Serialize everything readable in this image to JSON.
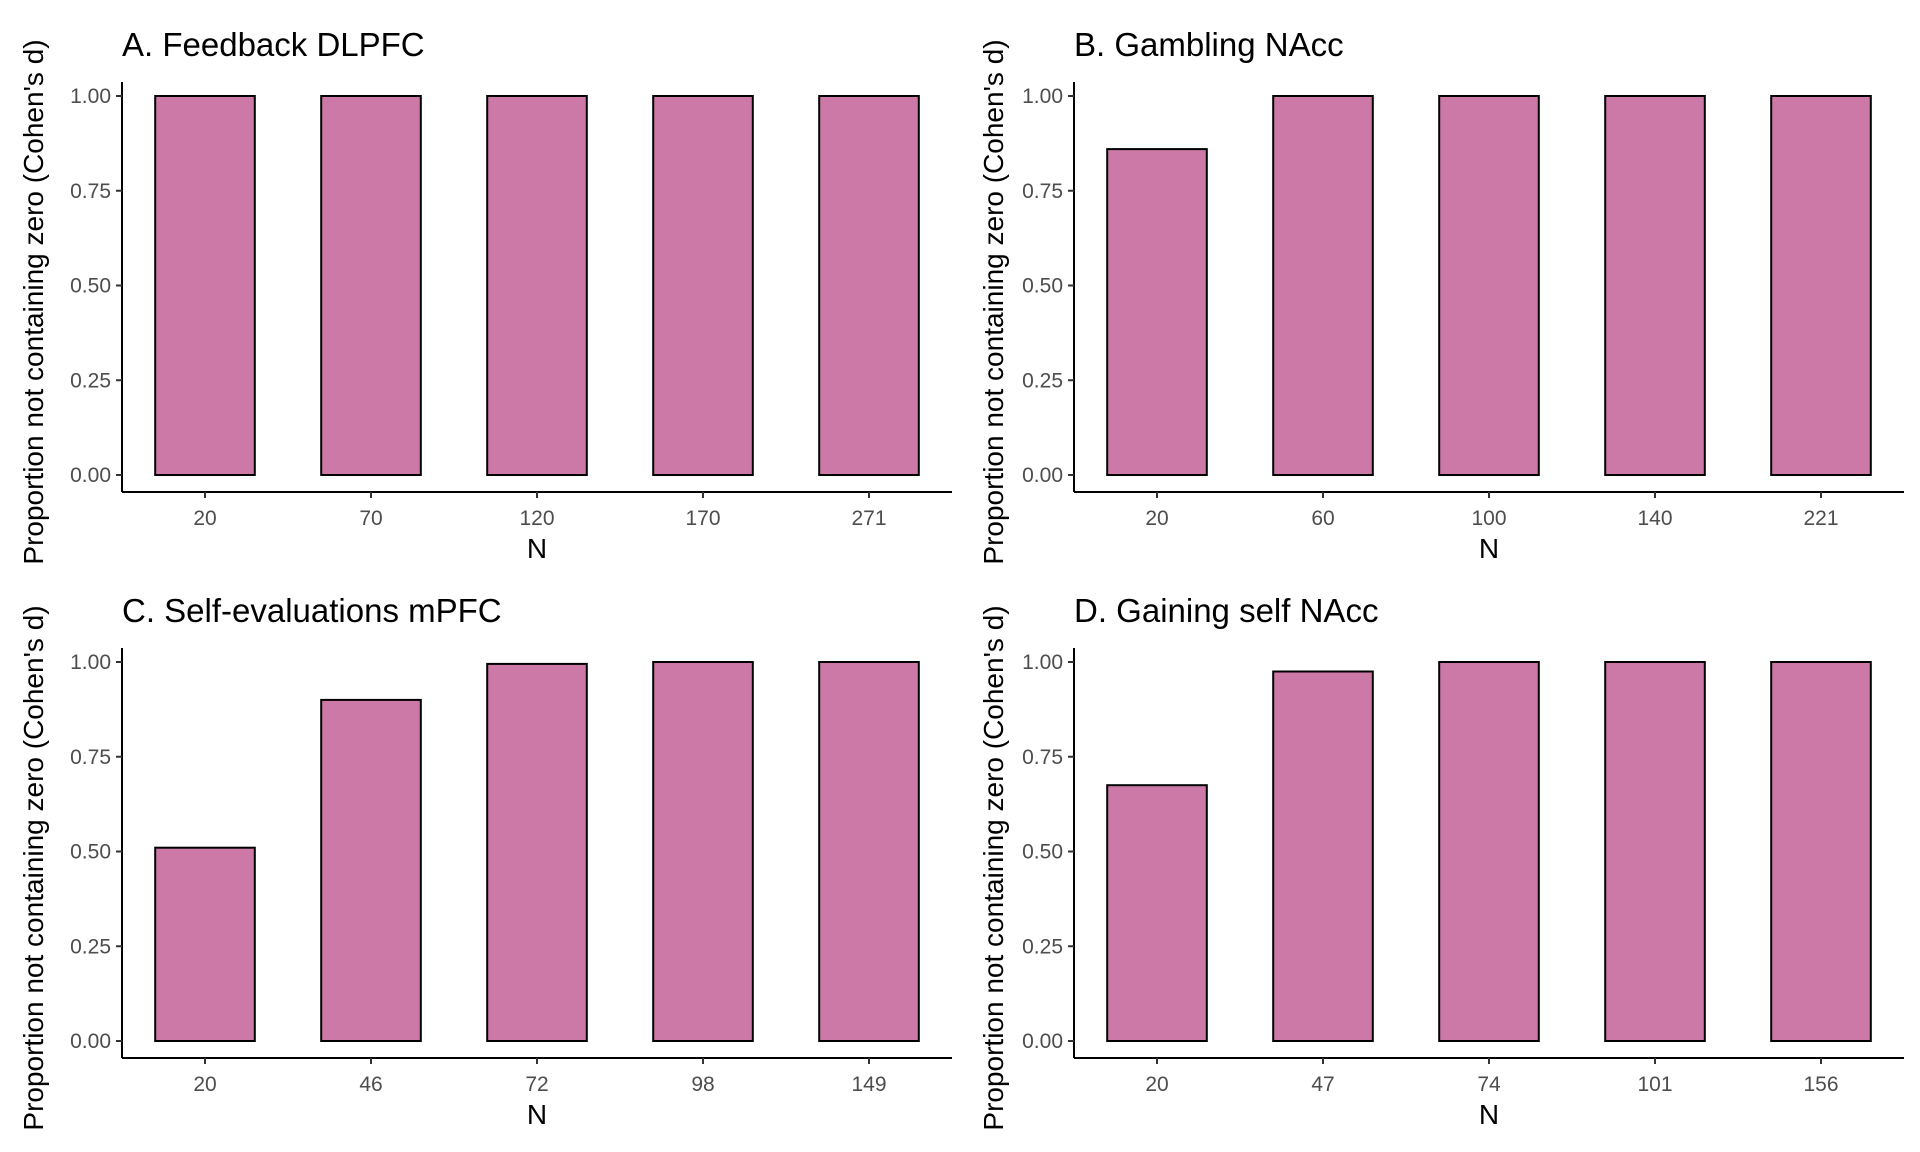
{
  "chart_data": [
    {
      "type": "bar",
      "title": "A. Feedback DLPFC",
      "xlabel": "N",
      "ylabel": "Proportion not containing zero (Cohen's d)",
      "categories": [
        "20",
        "70",
        "120",
        "170",
        "271"
      ],
      "values": [
        1.0,
        1.0,
        1.0,
        1.0,
        1.0
      ],
      "ylim": [
        0,
        1
      ],
      "yticks": [
        "0.00",
        "0.25",
        "0.50",
        "0.75",
        "1.00"
      ],
      "grid": false,
      "bar_color": "#CC79A7"
    },
    {
      "type": "bar",
      "title": "B. Gambling NAcc",
      "xlabel": "N",
      "ylabel": "Proportion not containing zero (Cohen's d)",
      "categories": [
        "20",
        "60",
        "100",
        "140",
        "221"
      ],
      "values": [
        0.86,
        1.0,
        1.0,
        1.0,
        1.0
      ],
      "ylim": [
        0,
        1
      ],
      "yticks": [
        "0.00",
        "0.25",
        "0.50",
        "0.75",
        "1.00"
      ],
      "grid": false,
      "bar_color": "#CC79A7"
    },
    {
      "type": "bar",
      "title": "C. Self-evaluations mPFC",
      "xlabel": "N",
      "ylabel": "Proportion not containing zero (Cohen's d)",
      "categories": [
        "20",
        "46",
        "72",
        "98",
        "149"
      ],
      "values": [
        0.51,
        0.9,
        0.995,
        1.0,
        1.0
      ],
      "ylim": [
        0,
        1
      ],
      "yticks": [
        "0.00",
        "0.25",
        "0.50",
        "0.75",
        "1.00"
      ],
      "grid": false,
      "bar_color": "#CC79A7"
    },
    {
      "type": "bar",
      "title": "D. Gaining self NAcc",
      "xlabel": "N",
      "ylabel": "Proportion not containing zero (Cohen's d)",
      "categories": [
        "20",
        "47",
        "74",
        "101",
        "156"
      ],
      "values": [
        0.675,
        0.975,
        1.0,
        1.0,
        1.0
      ],
      "ylim": [
        0,
        1
      ],
      "yticks": [
        "0.00",
        "0.25",
        "0.50",
        "0.75",
        "1.00"
      ],
      "grid": false,
      "bar_color": "#CC79A7"
    }
  ]
}
